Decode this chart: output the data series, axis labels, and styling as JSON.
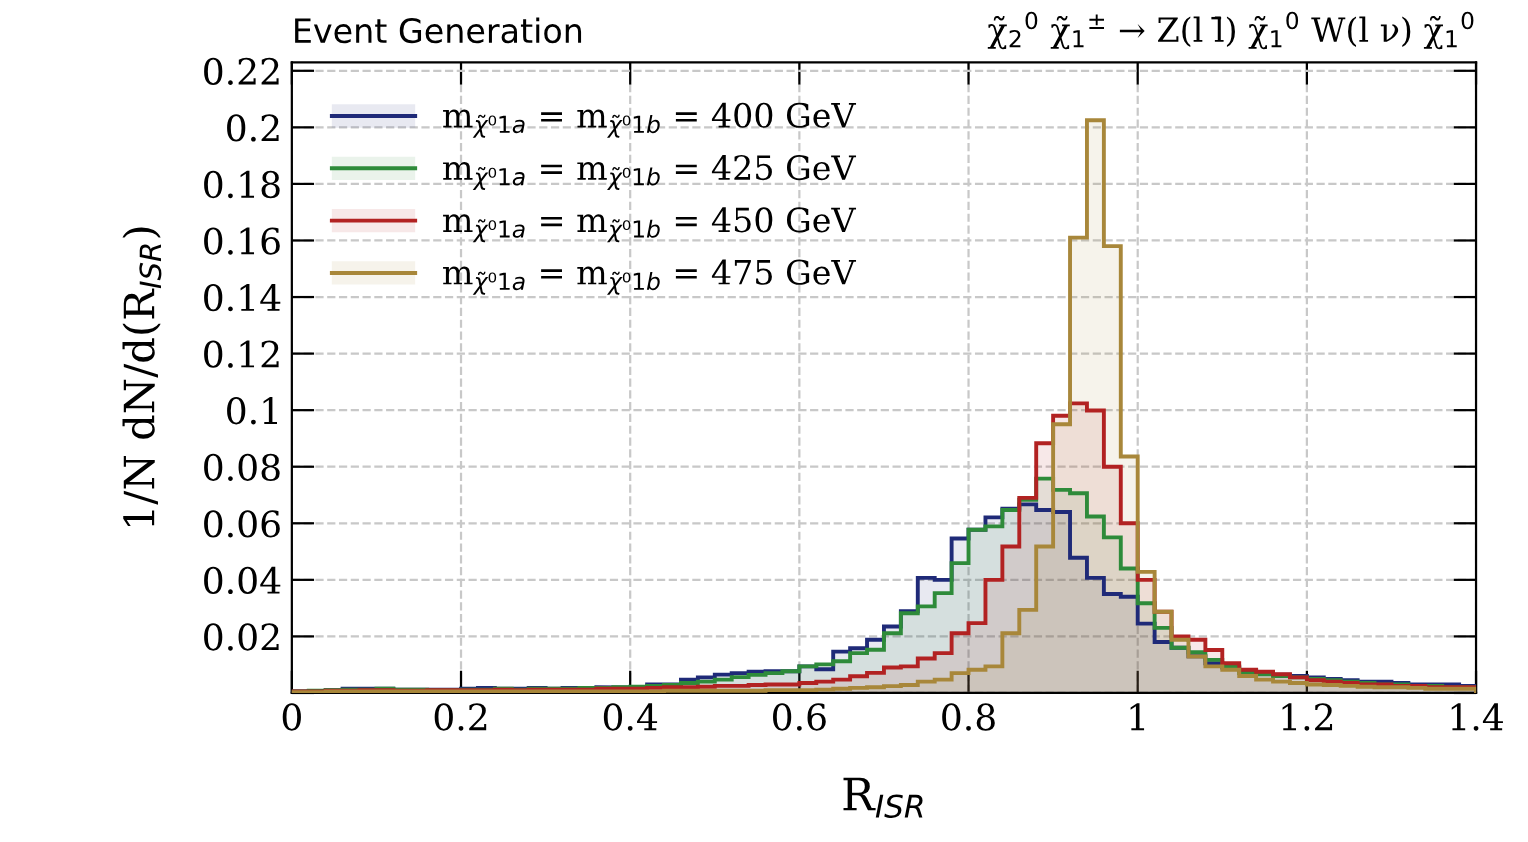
{
  "chart_data": {
    "type": "histogram",
    "title": "Event Generation",
    "subtitle": "χ̃$_{2}$$^{0}$ χ̃$_{1}$$^{±}$ → Z(l l̄) χ̃$_{1}$$^{0}$ W(l ν) χ̃$_{1}$$^{0}$",
    "xlabel": "R$_{ISR}$",
    "ylabel": "1/N dN/d(R$_{ISR}$)",
    "bins": [
      0,
      0.02,
      0.04,
      0.06,
      0.08,
      0.1,
      0.12,
      0.14,
      0.16,
      0.18,
      0.2,
      0.22,
      0.24,
      0.26,
      0.28,
      0.3,
      0.32,
      0.34,
      0.36,
      0.38,
      0.4,
      0.42,
      0.44,
      0.46,
      0.48,
      0.5,
      0.52,
      0.54,
      0.56,
      0.58,
      0.6,
      0.62,
      0.64,
      0.66,
      0.68,
      0.7,
      0.72,
      0.74,
      0.76,
      0.78,
      0.8,
      0.82,
      0.84,
      0.86,
      0.88,
      0.9,
      0.92,
      0.94,
      0.96,
      0.98,
      1.0,
      1.02,
      1.04,
      1.06,
      1.08,
      1.1,
      1.12,
      1.14,
      1.16,
      1.18,
      1.2,
      1.22,
      1.24,
      1.26,
      1.28,
      1.3,
      1.32,
      1.34,
      1.36,
      1.38,
      1.4
    ],
    "series": [
      {
        "name": "m$_{χ̃⁰1a}$ = m$_{χ̃⁰1b}$ = 400 GeV",
        "color": "#1f2a78",
        "values": [
          0.0005,
          0.0007,
          0.001,
          0.0015,
          0.0015,
          0.0015,
          0.0012,
          0.0012,
          0.0012,
          0.0012,
          0.0015,
          0.0018,
          0.0015,
          0.0015,
          0.0018,
          0.0015,
          0.0018,
          0.0018,
          0.002,
          0.002,
          0.0019,
          0.003,
          0.003,
          0.0047,
          0.0055,
          0.0065,
          0.007,
          0.0075,
          0.0077,
          0.0077,
          0.0094,
          0.0084,
          0.0146,
          0.0158,
          0.0188,
          0.0235,
          0.0289,
          0.0407,
          0.04,
          0.0546,
          0.0577,
          0.0621,
          0.0652,
          0.0667,
          0.0647,
          0.064,
          0.0478,
          0.0407,
          0.035,
          0.034,
          0.0245,
          0.018,
          0.016,
          0.013,
          0.0105,
          0.009,
          0.008,
          0.007,
          0.0065,
          0.006,
          0.0055,
          0.005,
          0.0045,
          0.004,
          0.004,
          0.0035,
          0.003,
          0.003,
          0.003,
          0.0025
        ]
      },
      {
        "name": "m$_{χ̃⁰1a}$ = m$_{χ̃⁰1b}$ = 425 GeV",
        "color": "#2e8b3a",
        "values": [
          0.0005,
          0.0008,
          0.001,
          0.0012,
          0.0012,
          0.0015,
          0.0012,
          0.0012,
          0.001,
          0.001,
          0.0012,
          0.0012,
          0.0015,
          0.0012,
          0.0015,
          0.0015,
          0.0015,
          0.0018,
          0.0018,
          0.002,
          0.0022,
          0.0025,
          0.0028,
          0.0035,
          0.004,
          0.0047,
          0.0056,
          0.0064,
          0.007,
          0.0077,
          0.0094,
          0.0101,
          0.0112,
          0.0141,
          0.0153,
          0.0211,
          0.0282,
          0.0306,
          0.0353,
          0.0459,
          0.0577,
          0.0589,
          0.0647,
          0.0683,
          0.0758,
          0.0718,
          0.0706,
          0.0624,
          0.055,
          0.044,
          0.0317,
          0.023,
          0.016,
          0.0144,
          0.0117,
          0.0094,
          0.007,
          0.0066,
          0.006,
          0.0055,
          0.005,
          0.0045,
          0.004,
          0.0035,
          0.003,
          0.003,
          0.0025,
          0.0025,
          0.002,
          0.002
        ]
      },
      {
        "name": "m$_{χ̃⁰1a}$ = m$_{χ̃⁰1b}$ = 450 GeV",
        "color": "#b22222",
        "values": [
          0.0005,
          0.0005,
          0.0008,
          0.0008,
          0.001,
          0.001,
          0.0008,
          0.0008,
          0.001,
          0.001,
          0.001,
          0.001,
          0.0012,
          0.001,
          0.0012,
          0.0012,
          0.0012,
          0.0012,
          0.0015,
          0.0015,
          0.0015,
          0.0018,
          0.002,
          0.002,
          0.0022,
          0.0025,
          0.0025,
          0.0028,
          0.003,
          0.003,
          0.0035,
          0.004,
          0.0047,
          0.0059,
          0.0071,
          0.009,
          0.0094,
          0.0122,
          0.0141,
          0.0211,
          0.0247,
          0.04,
          0.0518,
          0.069,
          0.0883,
          0.098,
          0.1024,
          0.0999,
          0.08,
          0.06,
          0.04,
          0.0287,
          0.02,
          0.0188,
          0.0152,
          0.0105,
          0.0082,
          0.0075,
          0.0066,
          0.0055,
          0.0045,
          0.004,
          0.0035,
          0.003,
          0.003,
          0.0025,
          0.0025,
          0.002,
          0.002,
          0.002
        ]
      },
      {
        "name": "m$_{χ̃⁰1a}$ = m$_{χ̃⁰1b}$ = 475 GeV",
        "color": "#a8873a",
        "values": [
          0.0003,
          0.0003,
          0.0005,
          0.0005,
          0.0005,
          0.0005,
          0.0005,
          0.0005,
          0.0005,
          0.0005,
          0.0005,
          0.0005,
          0.0005,
          0.0005,
          0.0005,
          0.0005,
          0.0005,
          0.0005,
          0.0005,
          0.0005,
          0.0005,
          0.0005,
          0.0008,
          0.0008,
          0.0008,
          0.0008,
          0.0008,
          0.0008,
          0.001,
          0.001,
          0.001,
          0.0012,
          0.0015,
          0.0018,
          0.002,
          0.0024,
          0.0028,
          0.004,
          0.0047,
          0.007,
          0.0082,
          0.0094,
          0.0211,
          0.0294,
          0.0518,
          0.095,
          0.161,
          0.2025,
          0.158,
          0.0836,
          0.0428,
          0.0287,
          0.0188,
          0.0129,
          0.0094,
          0.0082,
          0.006,
          0.0047,
          0.004,
          0.0035,
          0.003,
          0.0028,
          0.0025,
          0.0022,
          0.002,
          0.002,
          0.0018,
          0.0015,
          0.0015,
          0.0015
        ]
      }
    ],
    "xlim": [
      0,
      1.4
    ],
    "xticks": [
      0,
      0.2,
      0.4,
      0.6,
      0.8,
      1,
      1.2,
      1.4
    ],
    "ylim": [
      0,
      0.223
    ],
    "yticks": [
      {
        "value": 0,
        "label": null
      },
      0.02,
      0.04,
      0.06,
      0.08,
      0.1,
      0.12,
      0.14,
      0.16,
      0.18,
      0.2,
      0.22
    ],
    "grid": true,
    "legend": "top left"
  }
}
